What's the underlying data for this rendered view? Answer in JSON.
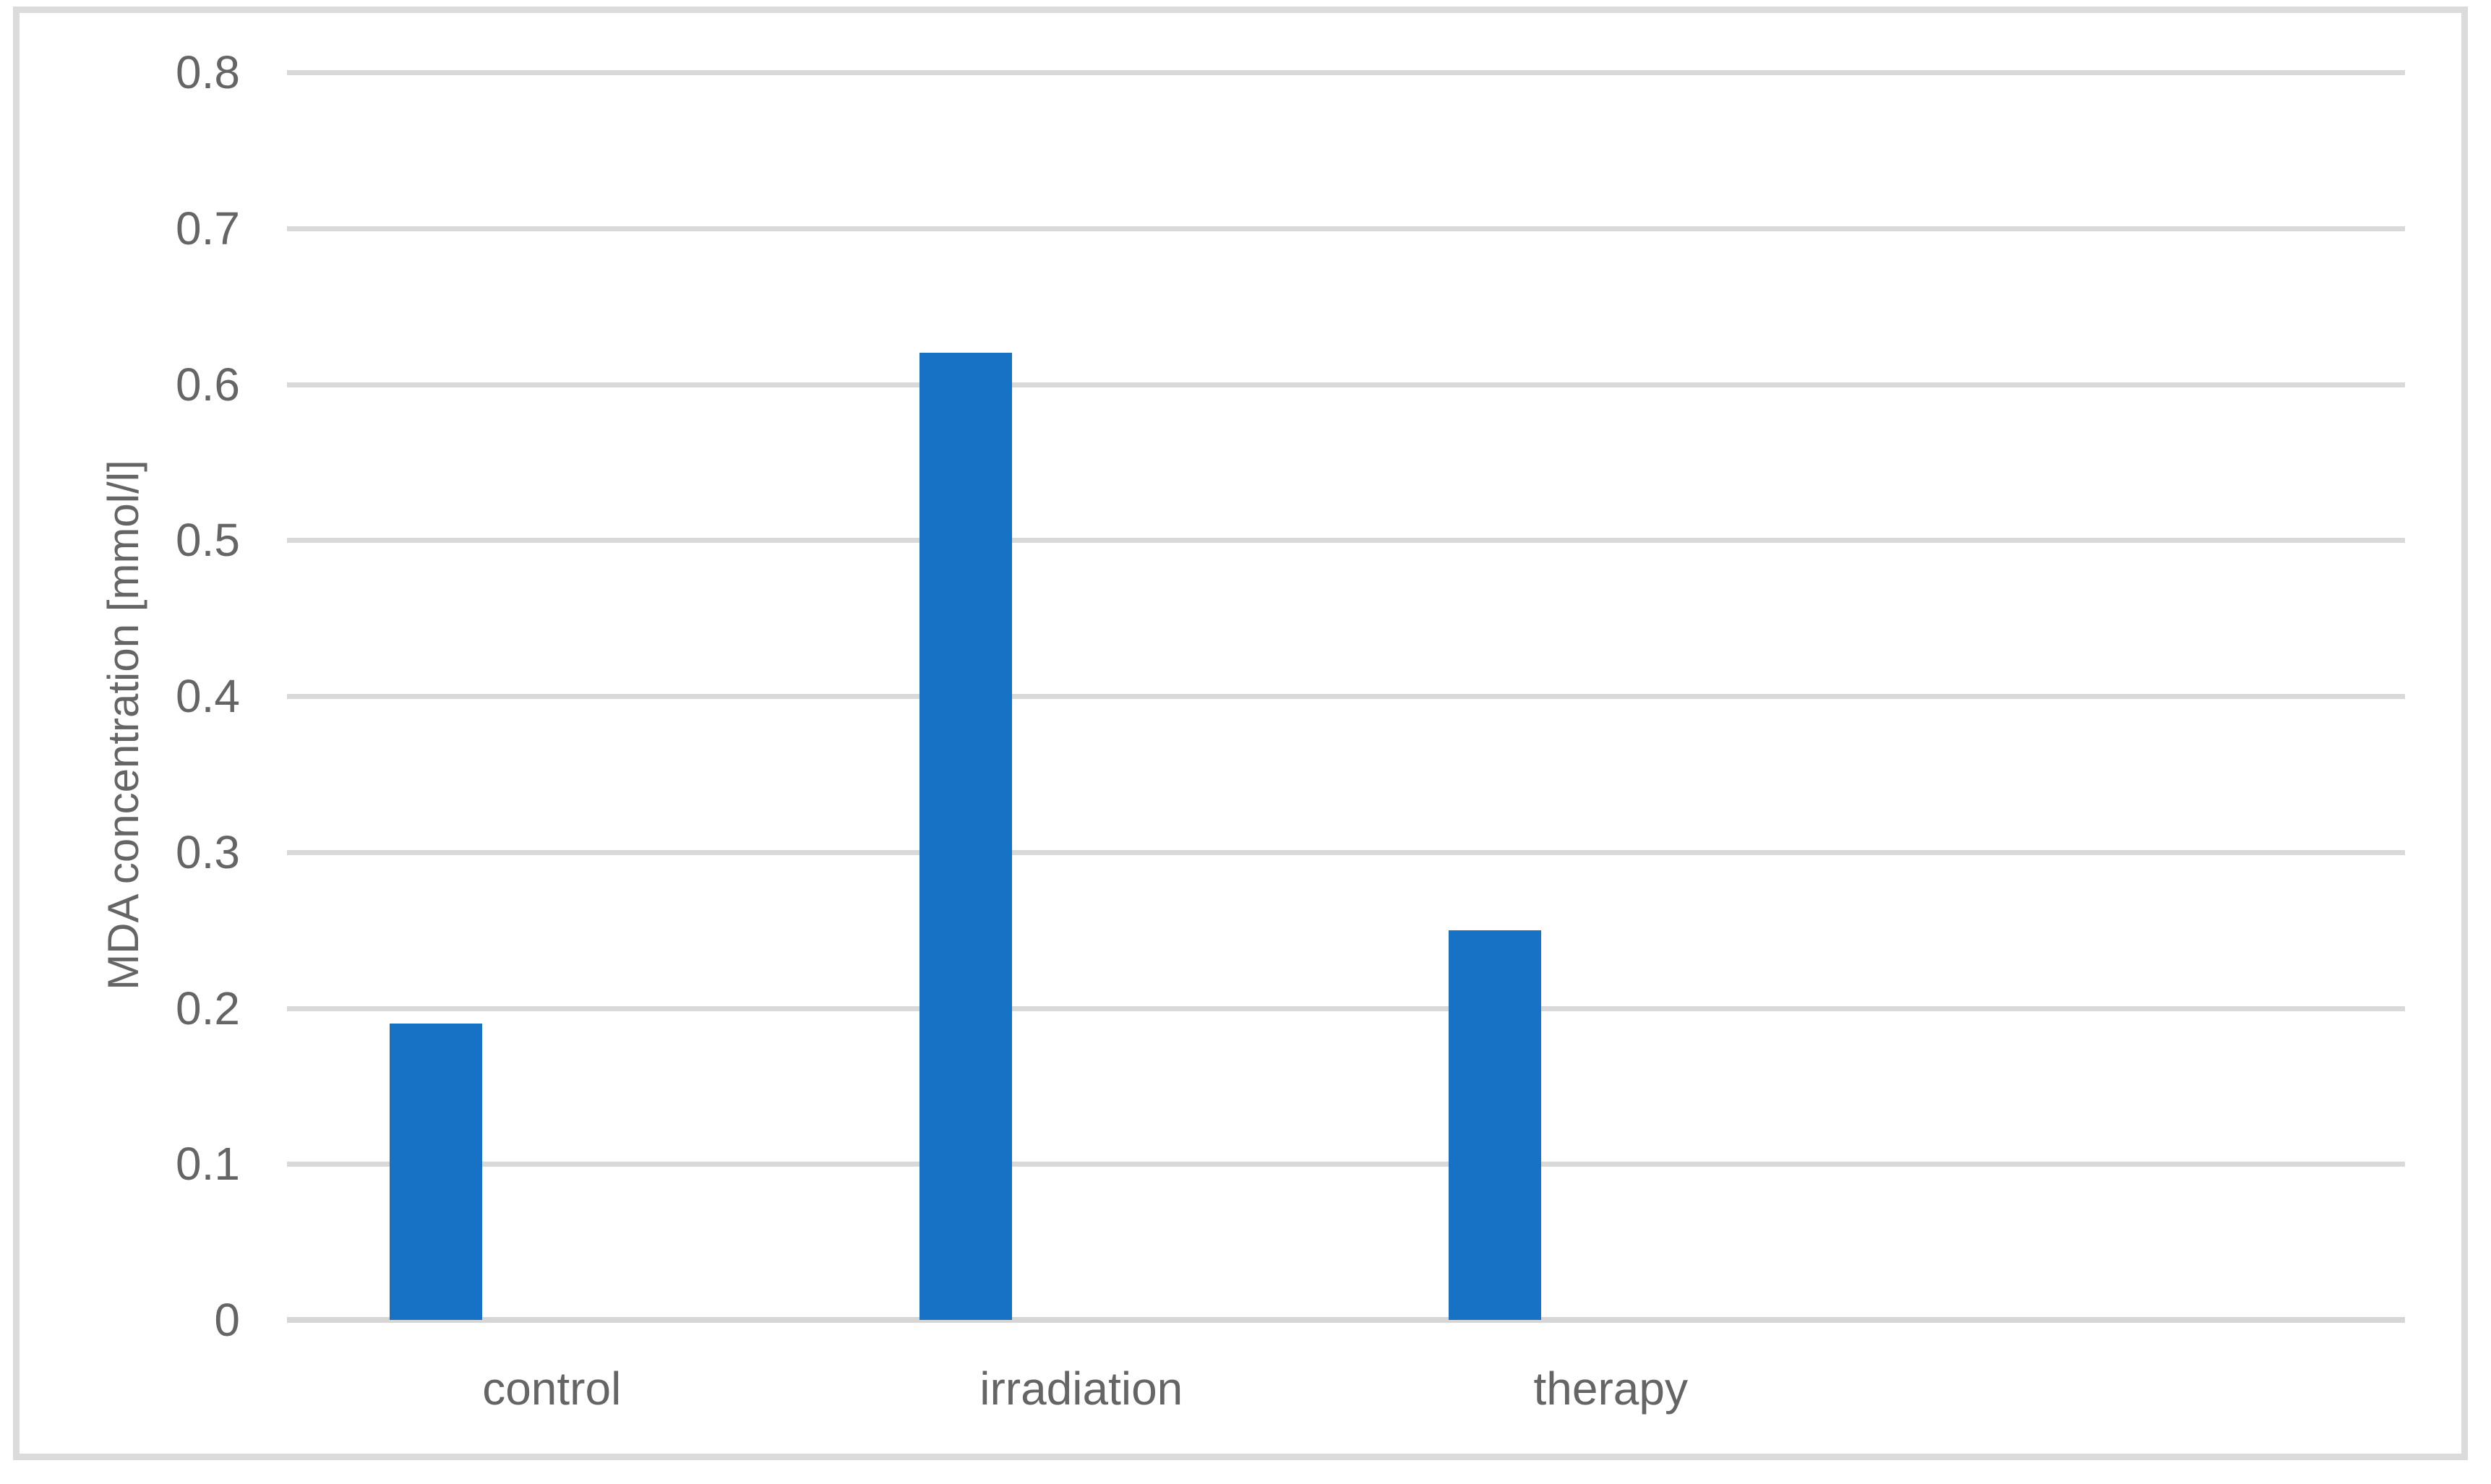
{
  "chart_data": {
    "type": "bar",
    "categories": [
      "control",
      "irradiation",
      "therapy"
    ],
    "values": [
      0.19,
      0.62,
      0.25
    ],
    "series_name": "MDA concentration",
    "title": "",
    "xlabel": "",
    "ylabel": "MDA concentration [mmol/l]",
    "ylim": [
      0,
      0.8
    ],
    "ytick_step": 0.1,
    "ytick_labels": [
      "0",
      "0.1",
      "0.2",
      "0.3",
      "0.4",
      "0.5",
      "0.6",
      "0.7",
      "0.8"
    ],
    "grid": true,
    "legend": false,
    "colors": {
      "bar": "#1772c6",
      "gridline": "#d9d9d9",
      "axis_line": "#d6d6d6",
      "text": "#656565",
      "border": "#dbdbdb",
      "background": "#ffffff"
    }
  }
}
